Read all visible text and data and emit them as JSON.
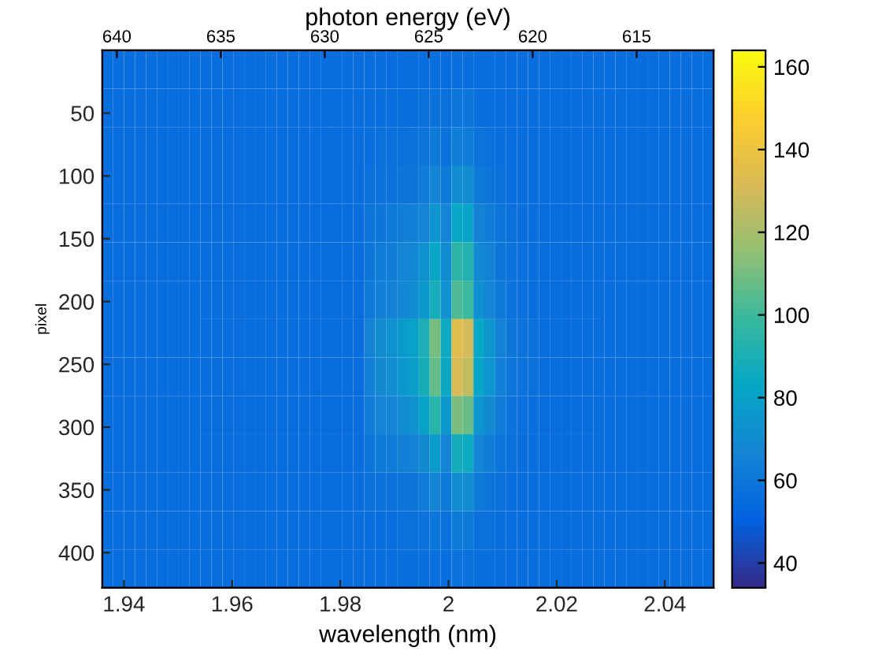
{
  "chart_data": {
    "type": "heatmap",
    "x2label": "photon energy (eV)",
    "xlabel": "wavelength (nm)",
    "ylabel": "pixel",
    "cells": [
      [
        55,
        55,
        55,
        55,
        55,
        55,
        55,
        55,
        55,
        55,
        55,
        55,
        55,
        55,
        55,
        55,
        55,
        55,
        55,
        55,
        55,
        55,
        55,
        55,
        55,
        55,
        55,
        55,
        55,
        55,
        56,
        55,
        56,
        56,
        55,
        55,
        55,
        55,
        55,
        55,
        55,
        55,
        55,
        55,
        55,
        55,
        55,
        55,
        55,
        55,
        55,
        55,
        55,
        55,
        55,
        55
      ],
      [
        55,
        55,
        55,
        55,
        55,
        55,
        55,
        55,
        55,
        55,
        55,
        55,
        55,
        55,
        55,
        55,
        55,
        55,
        55,
        55,
        55,
        55,
        55,
        55,
        55,
        56,
        56,
        56,
        56,
        57,
        58,
        57,
        59,
        59,
        56,
        56,
        55,
        55,
        55,
        55,
        55,
        55,
        55,
        55,
        55,
        55,
        55,
        55,
        55,
        55,
        55,
        55,
        55,
        55,
        55,
        55
      ],
      [
        55,
        55,
        55,
        55,
        55,
        55,
        55,
        55,
        55,
        55,
        55,
        55,
        55,
        55,
        55,
        55,
        55,
        55,
        55,
        55,
        55,
        55,
        55,
        55,
        56,
        57,
        57,
        57,
        58,
        59,
        61,
        58,
        63,
        62,
        58,
        57,
        56,
        55,
        55,
        55,
        55,
        55,
        55,
        55,
        55,
        55,
        55,
        55,
        55,
        55,
        55,
        55,
        55,
        55,
        55,
        55
      ],
      [
        55,
        55,
        55,
        55,
        55,
        55,
        55,
        55,
        55,
        55,
        55,
        55,
        55,
        55,
        55,
        55,
        55,
        55,
        55,
        55,
        55,
        55,
        55,
        55,
        57,
        58,
        58,
        59,
        60,
        62,
        66,
        61,
        71,
        70,
        61,
        59,
        57,
        56,
        55,
        55,
        55,
        55,
        55,
        55,
        55,
        55,
        55,
        55,
        55,
        55,
        55,
        55,
        55,
        55,
        55,
        55
      ],
      [
        55,
        55,
        55,
        55,
        55,
        55,
        55,
        55,
        55,
        55,
        55,
        55,
        55,
        55,
        55,
        55,
        55,
        55,
        55,
        55,
        55,
        55,
        55,
        55,
        59,
        60,
        61,
        63,
        64,
        67,
        74,
        66,
        83,
        81,
        65,
        62,
        59,
        57,
        56,
        56,
        55,
        55,
        55,
        55,
        55,
        55,
        55,
        55,
        55,
        55,
        55,
        55,
        55,
        55,
        55,
        55
      ],
      [
        55,
        55,
        55,
        55,
        55,
        55,
        55,
        55,
        55,
        55,
        55,
        55,
        55,
        55,
        55,
        55,
        55,
        55,
        55,
        55,
        55,
        55,
        55,
        55,
        60,
        62,
        63,
        66,
        68,
        72,
        83,
        70,
        95,
        92,
        69,
        65,
        60,
        58,
        57,
        56,
        55,
        55,
        55,
        55,
        55,
        55,
        55,
        55,
        55,
        55,
        55,
        55,
        55,
        55,
        55,
        55
      ],
      [
        55,
        55,
        55,
        55,
        55,
        55,
        55,
        55,
        55,
        55,
        55,
        55,
        55,
        55,
        55,
        55,
        55,
        55,
        55,
        55,
        55,
        55,
        55,
        55,
        61,
        64,
        65,
        68,
        70,
        76,
        88,
        73,
        103,
        100,
        72,
        67,
        61,
        58,
        57,
        56,
        55,
        55,
        55,
        55,
        55,
        55,
        55,
        55,
        55,
        55,
        55,
        55,
        55,
        55,
        55,
        55
      ],
      [
        55,
        55,
        55,
        55,
        55,
        55,
        55,
        55,
        55,
        55,
        55,
        55,
        55,
        55,
        55,
        55,
        55,
        55,
        55,
        55,
        55,
        55,
        55,
        55,
        65,
        70,
        72,
        77,
        80,
        90,
        110,
        85,
        135,
        130,
        83,
        75,
        65,
        60,
        58,
        57,
        55,
        55,
        55,
        55,
        55,
        55,
        55,
        55,
        55,
        55,
        55,
        55,
        55,
        55,
        55,
        55
      ],
      [
        55,
        55,
        55,
        55,
        55,
        55,
        55,
        55,
        55,
        55,
        55,
        55,
        55,
        55,
        55,
        55,
        55,
        55,
        55,
        55,
        55,
        55,
        55,
        55,
        64,
        69,
        71,
        76,
        79,
        88,
        107,
        84,
        131,
        126,
        82,
        74,
        64,
        60,
        58,
        57,
        55,
        55,
        55,
        55,
        55,
        55,
        55,
        55,
        55,
        55,
        55,
        55,
        55,
        55,
        55,
        55
      ],
      [
        55,
        55,
        55,
        55,
        55,
        55,
        55,
        55,
        55,
        55,
        55,
        55,
        55,
        55,
        55,
        55,
        55,
        55,
        55,
        55,
        55,
        55,
        55,
        55,
        62,
        66,
        67,
        70,
        72,
        80,
        94,
        76,
        111,
        108,
        75,
        69,
        62,
        58,
        57,
        56,
        55,
        55,
        55,
        55,
        55,
        55,
        55,
        55,
        55,
        55,
        55,
        55,
        55,
        55,
        55,
        55
      ],
      [
        55,
        55,
        55,
        55,
        55,
        55,
        55,
        55,
        55,
        55,
        55,
        55,
        55,
        55,
        55,
        55,
        55,
        55,
        55,
        55,
        55,
        55,
        55,
        55,
        59,
        61,
        62,
        64,
        65,
        69,
        77,
        67,
        87,
        85,
        66,
        63,
        59,
        57,
        56,
        56,
        55,
        55,
        55,
        55,
        55,
        55,
        55,
        55,
        55,
        55,
        55,
        55,
        55,
        55,
        55,
        55
      ],
      [
        55,
        55,
        55,
        55,
        55,
        55,
        55,
        55,
        55,
        55,
        55,
        55,
        55,
        55,
        55,
        55,
        55,
        55,
        55,
        55,
        55,
        55,
        55,
        55,
        57,
        58,
        58,
        59,
        60,
        62,
        66,
        61,
        71,
        70,
        61,
        59,
        57,
        56,
        55,
        55,
        55,
        55,
        55,
        55,
        55,
        55,
        55,
        55,
        55,
        55,
        55,
        55,
        55,
        55,
        55,
        55
      ],
      [
        55,
        55,
        55,
        55,
        55,
        55,
        55,
        55,
        55,
        55,
        55,
        55,
        55,
        55,
        55,
        55,
        55,
        55,
        55,
        55,
        55,
        55,
        55,
        55,
        56,
        56,
        56,
        57,
        57,
        58,
        59,
        57,
        61,
        61,
        57,
        57,
        56,
        55,
        55,
        55,
        55,
        55,
        55,
        55,
        55,
        55,
        55,
        55,
        55,
        55,
        55,
        55,
        55,
        55,
        55,
        55
      ],
      [
        55,
        55,
        55,
        55,
        55,
        55,
        55,
        55,
        55,
        55,
        55,
        55,
        55,
        55,
        55,
        55,
        55,
        55,
        55,
        55,
        55,
        55,
        55,
        55,
        55,
        55,
        55,
        56,
        56,
        56,
        57,
        56,
        58,
        57,
        56,
        56,
        55,
        55,
        55,
        55,
        55,
        55,
        55,
        55,
        55,
        55,
        55,
        55,
        55,
        55,
        55,
        55,
        55,
        55,
        55,
        55
      ]
    ],
    "colors": [
      "#352a87",
      "#0363e1",
      "#1485d4",
      "#06a7c6",
      "#38b99e",
      "#92bf73",
      "#d9ba56",
      "#fcce2e",
      "#f9fb0e"
    ],
    "xlim": [
      1.936,
      2.049
    ],
    "xticks": [
      1.94,
      1.96,
      1.98,
      2,
      2.02,
      2.04
    ],
    "ylim": [
      428,
      0
    ],
    "yticks": [
      50,
      100,
      150,
      200,
      250,
      300,
      350,
      400
    ],
    "x2lim": [
      640.7,
      611.3
    ],
    "x2ticks": [
      640,
      635,
      630,
      625,
      620,
      615
    ],
    "clim": [
      34,
      164
    ],
    "cticks": [
      40,
      60,
      80,
      100,
      120,
      140,
      160
    ]
  }
}
